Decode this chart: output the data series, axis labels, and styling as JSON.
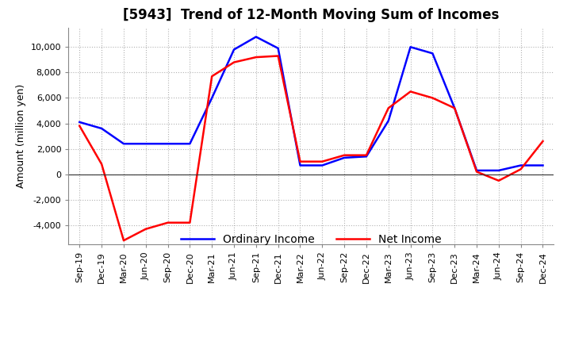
{
  "title": "[5943]  Trend of 12-Month Moving Sum of Incomes",
  "ylabel": "Amount (million yen)",
  "ylim": [
    -5500,
    11500
  ],
  "yticks": [
    -4000,
    -2000,
    0,
    2000,
    4000,
    6000,
    8000,
    10000
  ],
  "x_labels": [
    "Sep-19",
    "Dec-19",
    "Mar-20",
    "Jun-20",
    "Sep-20",
    "Dec-20",
    "Mar-21",
    "Jun-21",
    "Sep-21",
    "Dec-21",
    "Mar-22",
    "Jun-22",
    "Sep-22",
    "Dec-22",
    "Mar-23",
    "Jun-23",
    "Sep-23",
    "Dec-23",
    "Mar-24",
    "Jun-24",
    "Sep-24",
    "Dec-24"
  ],
  "ordinary_income": [
    4100,
    3600,
    2400,
    2400,
    2400,
    2400,
    6000,
    9800,
    10800,
    9900,
    700,
    700,
    1300,
    1400,
    4200,
    10000,
    9500,
    5200,
    300,
    300,
    700,
    700
  ],
  "net_income": [
    3800,
    800,
    -5200,
    -4300,
    -3800,
    -3800,
    7700,
    8800,
    9200,
    9300,
    1000,
    1000,
    1500,
    1500,
    5200,
    6500,
    6000,
    5200,
    200,
    -500,
    400,
    2600
  ],
  "ordinary_color": "#0000ff",
  "net_color": "#ff0000",
  "line_width": 1.8,
  "title_fontsize": 12,
  "label_fontsize": 9,
  "tick_fontsize": 8,
  "background_color": "#ffffff",
  "grid_color": "#aaaaaa",
  "zero_line_color": "#333333"
}
